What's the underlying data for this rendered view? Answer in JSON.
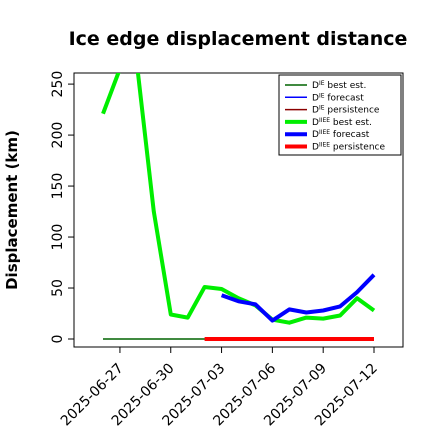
{
  "chart_data": {
    "type": "line",
    "title": "Ice edge displacement distance",
    "ylabel": "Displacement (km)",
    "xlabel": "",
    "ylim": [
      0,
      260
    ],
    "yticks": [
      0,
      50,
      100,
      150,
      200,
      250
    ],
    "xlim": [
      "2025-06-26",
      "2025-07-12"
    ],
    "xticks": [
      {
        "date": "2025-06-27",
        "label": "2025-06-27",
        "color": "#000000"
      },
      {
        "date": "2025-06-30",
        "label": "2025-06-30",
        "color": "#000000"
      },
      {
        "date": "2025-07-03",
        "label": "2025-07-03",
        "color": "#228b22"
      },
      {
        "date": "2025-07-06",
        "label": "2025-07-06",
        "color": "#000000"
      },
      {
        "date": "2025-07-09",
        "label": "2025-07-09",
        "color": "#000000"
      },
      {
        "date": "2025-07-12",
        "label": "2025-07-12",
        "color": "#000000"
      }
    ],
    "series": [
      {
        "name_prefix": "D",
        "name_sup": "IE",
        "name_suffix": " best est.",
        "color": "#006400",
        "width": "thin",
        "x": [
          "2025-06-26",
          "2025-07-12"
        ],
        "y": [
          0,
          0
        ]
      },
      {
        "name_prefix": "D",
        "name_sup": "IE",
        "name_suffix": " forecast",
        "color": "#0000ff",
        "width": "thin",
        "x": [],
        "y": []
      },
      {
        "name_prefix": "D",
        "name_sup": "IE",
        "name_suffix": " persistence",
        "color": "#8b0000",
        "width": "thin",
        "x": [],
        "y": []
      },
      {
        "name_prefix": "D",
        "name_sup": "IIEE",
        "name_suffix": " best est.",
        "color": "#00ee00",
        "width": "thick",
        "x": [
          "2025-06-26",
          "2025-06-27",
          "2025-06-28",
          "2025-06-29",
          "2025-06-30",
          "2025-07-01",
          "2025-07-02",
          "2025-07-03",
          "2025-07-04",
          "2025-07-05",
          "2025-07-06",
          "2025-07-07",
          "2025-07-08",
          "2025-07-09",
          "2025-07-10",
          "2025-07-11",
          "2025-07-12"
        ],
        "y": [
          221,
          265,
          270,
          125,
          24,
          21,
          51,
          49,
          40,
          33,
          19,
          16,
          21,
          20,
          23,
          40,
          28
        ]
      },
      {
        "name_prefix": "D",
        "name_sup": "IIEE",
        "name_suffix": " forecast",
        "color": "#0000ff",
        "width": "thick",
        "x": [
          "2025-07-03",
          "2025-07-04",
          "2025-07-05",
          "2025-07-06",
          "2025-07-07",
          "2025-07-08",
          "2025-07-09",
          "2025-07-10",
          "2025-07-11",
          "2025-07-12"
        ],
        "y": [
          43,
          37,
          34,
          18,
          29,
          26,
          28,
          32,
          46,
          63
        ]
      },
      {
        "name_prefix": "D",
        "name_sup": "IIEE",
        "name_suffix": " persistence",
        "color": "#ff0000",
        "width": "thick",
        "x": [
          "2025-07-02",
          "2025-07-12"
        ],
        "y": [
          0,
          0
        ]
      }
    ],
    "legend_position": "top-right",
    "grid": false
  }
}
